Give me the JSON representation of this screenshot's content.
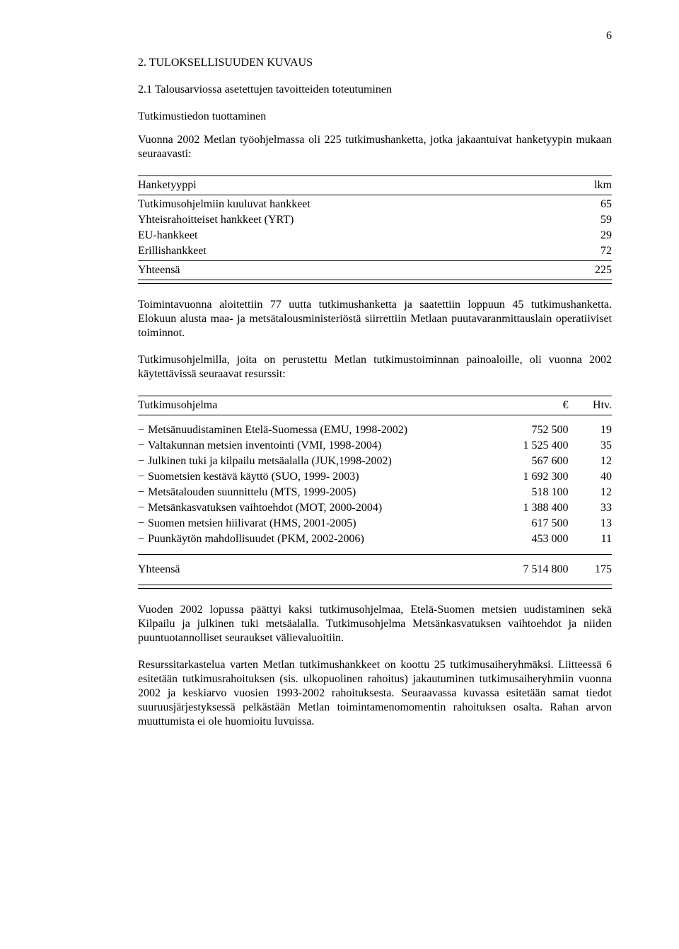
{
  "page_number": "6",
  "heading": "2. TULOKSELLISUUDEN KUVAUS",
  "subheading": "2.1 Talousarviossa asetettujen tavoitteiden toteutuminen",
  "sub_label": "Tutkimustiedon tuottaminen",
  "intro_para": "Vuonna 2002 Metlan työohjelmassa oli 225 tutkimushanketta, jotka jakaantuivat hanketyypin mukaan seuraavasti:",
  "table1": {
    "header": {
      "col1": "Hanketyyppi",
      "col2": "lkm"
    },
    "rows": [
      {
        "label": "Tutkimusohjelmiin kuuluvat hankkeet",
        "value": "65"
      },
      {
        "label": "Yhteisrahoitteiset hankkeet (YRT)",
        "value": "59"
      },
      {
        "label": "EU-hankkeet",
        "value": "29"
      },
      {
        "label": "Erillishankkeet",
        "value": "72"
      }
    ],
    "total": {
      "label": "Yhteensä",
      "value": "225"
    }
  },
  "para2": "Toimintavuonna aloitettiin 77 uutta tutkimushanketta ja saatettiin loppuun 45 tutkimushanketta. Elokuun alusta maa- ja metsätalousministeriöstä siirrettiin Metlaan puutavaranmittauslain operatiiviset toiminnot.",
  "para3": "Tutkimusohjelmilla, joita on perustettu Metlan tutkimustoiminnan painoaloille, oli vuonna 2002 käytettävissä seuraavat resurssit:",
  "table2": {
    "header": {
      "col1": "Tutkimusohjelma",
      "col2": "€",
      "col3": "Htv."
    },
    "rows": [
      {
        "label": "Metsänuudistaminen Etelä-Suomessa (EMU, 1998-2002)",
        "eur": "752 500",
        "htv": "19"
      },
      {
        "label": "Valtakunnan metsien inventointi (VMI, 1998-2004)",
        "eur": "1 525 400",
        "htv": "35"
      },
      {
        "label": "Julkinen tuki ja kilpailu metsäalalla (JUK,1998-2002)",
        "eur": "567 600",
        "htv": "12"
      },
      {
        "label": "Suometsien kestävä käyttö (SUO, 1999- 2003)",
        "eur": "1 692 300",
        "htv": "40"
      },
      {
        "label": "Metsätalouden suunnittelu (MTS, 1999-2005)",
        "eur": "518 100",
        "htv": "12"
      },
      {
        "label": "Metsänkasvatuksen vaihtoehdot (MOT, 2000-2004)",
        "eur": "1 388 400",
        "htv": "33"
      },
      {
        "label": "Suomen metsien hiilivarat (HMS, 2001-2005)",
        "eur": "617 500",
        "htv": "13"
      },
      {
        "label": "Puunkäytön mahdollisuudet (PKM, 2002-2006)",
        "eur": "453 000",
        "htv": "11"
      }
    ],
    "total": {
      "label": "Yhteensä",
      "eur": "7 514 800",
      "htv": "175"
    }
  },
  "para4": "Vuoden 2002 lopussa päättyi kaksi tutkimusohjelmaa, Etelä-Suomen metsien uudistaminen sekä Kilpailu ja julkinen tuki metsäalalla. Tutkimusohjelma Metsänkasvatuksen vaihtoehdot ja niiden puuntuotannolliset seuraukset välievaluoitiin.",
  "para5": "Resurssitarkastelua varten Metlan tutkimushankkeet on koottu 25 tutkimusaiheryhmäksi. Liitteessä 6 esitetään tutkimusrahoituksen (sis. ulkopuolinen rahoitus) jakautuminen tutkimusaiheryhmiin vuonna 2002 ja keskiarvo vuosien 1993-2002 rahoituksesta. Seuraavassa kuvassa esitetään samat tiedot suuruusjärjestyksessä pelkästään Metlan toimintamenomomentin rahoituksen osalta. Rahan arvon muuttumista ei ole huomioitu luvuissa."
}
